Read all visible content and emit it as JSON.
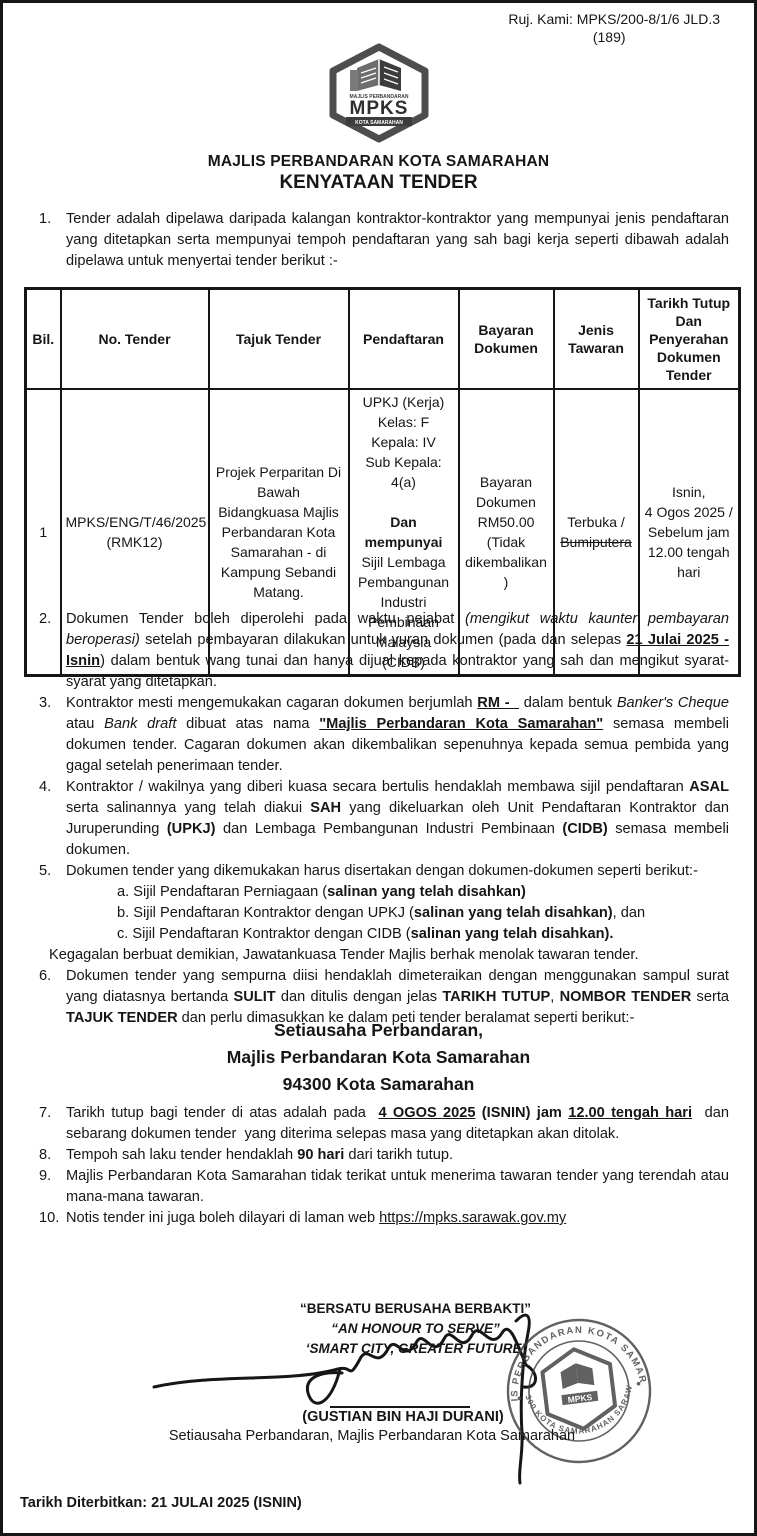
{
  "doc": {
    "ref_line": "Ruj. Kami:  MPKS/200-8/1/6 JLD.3",
    "ref_line2": "(189)",
    "org_title": "MAJLIS PERBANDARAN KOTA SAMARAHAN",
    "doc_title": "KENYATAAN TENDER"
  },
  "logo": {
    "top_text": "MAJLIS PERBANDARAN",
    "acronym": "MPKS",
    "bottom_text": "KOTA SAMARAHAN"
  },
  "item1": {
    "num": "1.",
    "segments": [
      {
        "t": "Tender adalah dipelawa daripada kalangan kontraktor-kontraktor yang mempunyai jenis pendaftaran yang ditetapkan serta mempunyai tempoh pendaftaran yang sah bagi kerja seperti dibawah adalah dipelawa untuk menyertai tender berikut :-"
      }
    ]
  },
  "table": {
    "headers": [
      "Bil.",
      "No. Tender",
      "Tajuk Tender",
      "Pendaftaran",
      "Bayaran\nDokumen",
      "Jenis\nTawaran",
      "Tarikh Tutup\nDan\nPenyerahan\nDokumen\nTender"
    ],
    "row": {
      "bil": "1",
      "no_tender": "MPKS/ENG/T/46/2025\n(RMK12)",
      "tajuk": "Projek Perparitan Di\nBawah\nBidangkuasa Majlis\nPerbandaran Kota\nSamarahan - di\nKampung Sebandi\nMatang.",
      "pendaftaran": [
        {
          "t": "UPKJ (Kerja)\nKelas: F\nKepala: IV\nSub Kepala: 4(a)\n\n"
        },
        {
          "t": "Dan mempunyai",
          "b": 1
        },
        {
          "t": "\nSijil Lembaga\nPembangunan\nIndustri\nPembinaan\nMalaysia (CIDB)"
        }
      ],
      "bayaran": "Bayaran\nDokumen\nRM50.00\n(Tidak\ndikembalikan\n)",
      "jenis": [
        {
          "t": "Terbuka /\n"
        },
        {
          "t": "Bumiputera",
          "s": 1
        }
      ],
      "tarikh": "Isnin,\n4 Ogos 2025 /\nSebelum jam\n12.00 tengah\nhari"
    }
  },
  "items": [
    {
      "num": "2.",
      "segments": [
        {
          "t": "Dokumen Tender boleh diperolehi pada waktu pejabat "
        },
        {
          "t": "(mengikut waktu kaunter pembayaran beroperasi)",
          "i": 1
        },
        {
          "t": " setelah pembayaran dilakukan untuk yuran dokumen (pada dan selepas "
        },
        {
          "t": "21 Julai 2025 - Isnin",
          "b": 1,
          "u": 1
        },
        {
          "t": ") dalam bentuk wang tunai dan hanya dijual kepada kontraktor yang sah dan mengikut syarat-syarat yang ditetapkan."
        }
      ]
    },
    {
      "num": "3.",
      "segments": [
        {
          "t": "Kontraktor mesti mengemukakan cagaran dokumen berjumlah "
        },
        {
          "t": "RM -  ",
          "b": 1,
          "u": 1
        },
        {
          "t": " dalam bentuk "
        },
        {
          "t": "Banker's Cheque",
          "i": 1
        },
        {
          "t": " atau "
        },
        {
          "t": "Bank draft",
          "i": 1
        },
        {
          "t": " dibuat atas nama "
        },
        {
          "t": "\"Majlis Perbandaran Kota Samarahan\"",
          "b": 1,
          "u": 1
        },
        {
          "t": " semasa membeli dokumen tender. Cagaran dokumen akan dikembalikan sepenuhnya kepada semua pembida yang gagal setelah penerimaan tender."
        }
      ]
    },
    {
      "num": "4.",
      "segments": [
        {
          "t": "Kontraktor / wakilnya yang diberi kuasa secara bertulis hendaklah membawa sijil pendaftaran "
        },
        {
          "t": "ASAL",
          "b": 1
        },
        {
          "t": " serta salinannya yang telah diakui "
        },
        {
          "t": "SAH",
          "b": 1
        },
        {
          "t": " yang dikeluarkan oleh Unit Pendaftaran Kontraktor dan Juruperunding "
        },
        {
          "t": "(UPKJ)",
          "b": 1
        },
        {
          "t": " dan Lembaga Pembangunan Industri Pembinaan "
        },
        {
          "t": "(CIDB)",
          "b": 1
        },
        {
          "t": " semasa membeli dokumen."
        }
      ]
    },
    {
      "num": "5.",
      "segments": [
        {
          "t": "Dokumen tender yang dikemukakan harus disertakan dengan dokumen-dokumen seperti berikut:-"
        }
      ]
    },
    {
      "num": "6.",
      "segments": [
        {
          "t": "Dokumen tender yang sempurna diisi hendaklah dimeteraikan dengan menggunakan sampul surat yang diatasnya bertanda "
        },
        {
          "t": "SULIT",
          "b": 1
        },
        {
          "t": " dan ditulis dengan jelas "
        },
        {
          "t": "TARIKH TUTUP",
          "b": 1
        },
        {
          "t": ", "
        },
        {
          "t": "NOMBOR TENDER",
          "b": 1
        },
        {
          "t": " serta "
        },
        {
          "t": "TAJUK TENDER",
          "b": 1
        },
        {
          "t": " dan perlu dimasukkan ke dalam peti tender beralamat seperti berikut:-"
        }
      ]
    }
  ],
  "sub_items": [
    {
      "segments": [
        {
          "t": "a. Sijil Pendaftaran Perniagaan ("
        },
        {
          "t": "salinan yang telah disahkan",
          "b": 1
        },
        {
          "t": ")",
          "b": 1
        }
      ]
    },
    {
      "segments": [
        {
          "t": "b. Sijil Pendaftaran Kontraktor dengan UPKJ ("
        },
        {
          "t": "salinan yang telah disahkan)",
          "b": 1
        },
        {
          "t": ", dan"
        }
      ]
    },
    {
      "segments": [
        {
          "t": "c. Sijil Pendaftaran Kontraktor dengan CIDB ("
        },
        {
          "t": "salinan yang telah disahkan).",
          "b": 1
        }
      ]
    }
  ],
  "sub_note": {
    "segments": [
      {
        "t": "Kegagalan berbuat demikian, Jawatankuasa Tender Majlis berhak menolak tawaran tender."
      }
    ]
  },
  "address_lines": [
    "Setiausaha Perbandaran,",
    "Majlis Perbandaran Kota Samarahan",
    "94300 Kota Samarahan"
  ],
  "items_after": [
    {
      "num": "7.",
      "segments": [
        {
          "t": "Tarikh tutup bagi tender di atas adalah pada  "
        },
        {
          "t": "4 OGOS 2025",
          "b": 1,
          "u": 1
        },
        {
          "t": " (ISNIN) jam ",
          "b": 1
        },
        {
          "t": "12.00 tengah hari",
          "b": 1,
          "u": 1
        },
        {
          "t": "  dan sebarang dokumen tender  yang diterima selepas masa yang ditetapkan akan ditolak."
        }
      ]
    },
    {
      "num": "8.",
      "segments": [
        {
          "t": "Tempoh sah laku tender hendaklah "
        },
        {
          "t": "90 hari",
          "b": 1
        },
        {
          "t": " dari tarikh tutup."
        }
      ]
    },
    {
      "num": "9.",
      "segments": [
        {
          "t": "Majlis Perbandaran Kota Samarahan tidak terikat untuk menerima tawaran tender yang terendah atau mana-mana tawaran."
        }
      ]
    },
    {
      "num": "10.",
      "segments": [
        {
          "t": "Notis tender ini juga boleh dilayari di laman web "
        },
        {
          "t": "https://mpks.sarawak.gov.my",
          "u": 1,
          "link": 1
        }
      ]
    }
  ],
  "footer": {
    "motto_lines": [
      "“BERSATU BERUSAHA BERBAKTI”",
      "“AN HONOUR TO SERVE”",
      "‘SMART CITY, GREATER FUTURE’"
    ],
    "signature_name": "(GUSTIAN BIN HAJI DURANI)",
    "signature_title": "Setiausaha Perbandaran, Majlis Perbandaran Kota Samarahan",
    "stamp": {
      "top_text": "MAJLIS PERBANDARAN KOTA SAMARAHAN",
      "bottom_text": "94300 KOTA SAMARAHAN SARAWAK",
      "center_text": "MPKS"
    },
    "published_label": "Tarikh Diterbitkan: ",
    "published_value": " 21 JULAI 2025 (ISNIN)"
  }
}
